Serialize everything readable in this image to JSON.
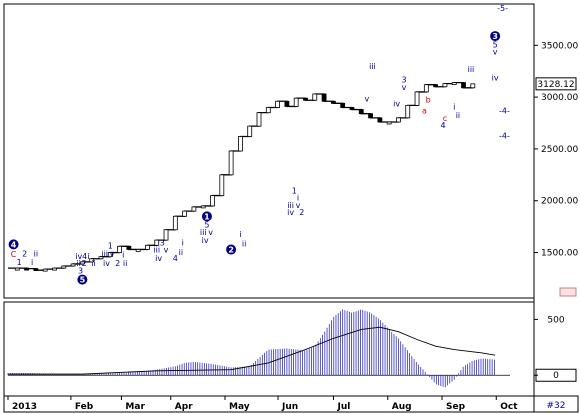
{
  "chart_data": [
    {
      "type": "line",
      "panel": "price",
      "title": "",
      "xlabel": "",
      "ylabel": "",
      "ylim": [
        1100,
        3860
      ],
      "y_ticks": [
        1500,
        2000,
        2500,
        3000,
        3500
      ],
      "y_tick_labels": [
        "1500.00",
        "2000.00",
        "2500.00",
        "3000.00",
        "3500.00"
      ],
      "last_value": 3128.12,
      "last_value_label": "3128.12",
      "grid": false,
      "months": [
        "2013",
        "Feb",
        "Mar",
        "Apr",
        "May",
        "Jun",
        "Jul",
        "Aug",
        "Sep",
        "Oct"
      ],
      "series": [
        {
          "values": [
            [
              0.0,
              1350
            ],
            [
              0.5,
              1350
            ],
            [
              1.0,
              1345
            ],
            [
              1.5,
              1330
            ],
            [
              2.0,
              1340
            ],
            [
              2.5,
              1350
            ],
            [
              3.0,
              1370
            ],
            [
              3.5,
              1390
            ],
            [
              4.0,
              1410
            ],
            [
              4.5,
              1440
            ],
            [
              5.0,
              1460
            ],
            [
              5.5,
              1500
            ],
            [
              6.0,
              1560
            ],
            [
              6.5,
              1530
            ],
            [
              7.0,
              1530
            ],
            [
              7.5,
              1570
            ],
            [
              8.0,
              1620
            ],
            [
              8.5,
              1720
            ],
            [
              9.0,
              1850
            ],
            [
              9.5,
              1900
            ],
            [
              10.0,
              1940
            ],
            [
              10.5,
              1950
            ],
            [
              11.0,
              2050
            ],
            [
              11.5,
              2250
            ],
            [
              12.0,
              2480
            ],
            [
              12.5,
              2620
            ],
            [
              13.0,
              2720
            ],
            [
              13.5,
              2850
            ],
            [
              14.0,
              2900
            ],
            [
              14.5,
              2960
            ],
            [
              15.0,
              2910
            ],
            [
              15.5,
              2990
            ],
            [
              16.0,
              2970
            ],
            [
              16.5,
              3030
            ],
            [
              17.0,
              2960
            ],
            [
              17.5,
              2940
            ],
            [
              18.0,
              2900
            ],
            [
              18.5,
              2880
            ],
            [
              19.0,
              2840
            ],
            [
              19.5,
              2800
            ],
            [
              20.0,
              2760
            ],
            [
              20.5,
              2760
            ],
            [
              21.0,
              2800
            ],
            [
              21.5,
              2920
            ],
            [
              22.0,
              3050
            ],
            [
              22.5,
              3120
            ],
            [
              23.0,
              3100
            ],
            [
              23.5,
              3130
            ],
            [
              24.0,
              3140
            ],
            [
              24.5,
              3090
            ],
            [
              25.0,
              3128.12
            ]
          ]
        }
      ],
      "wave_labels": [
        {
          "text": "4",
          "x": 0.3,
          "y": 1550,
          "color": "#ffffff",
          "circle": true
        },
        {
          "text": "C",
          "x": 0.3,
          "y": 1455,
          "color": "#cc0000"
        },
        {
          "text": "2",
          "x": 0.9,
          "y": 1460,
          "color": "#000099"
        },
        {
          "text": "ii",
          "x": 1.5,
          "y": 1460,
          "color": "#000099"
        },
        {
          "text": "1",
          "x": 0.6,
          "y": 1380,
          "color": "#000099"
        },
        {
          "text": "i",
          "x": 1.3,
          "y": 1380,
          "color": "#000099"
        },
        {
          "text": "iv4i",
          "x": 4.0,
          "y": 1440,
          "color": "#000099"
        },
        {
          "text": "ii",
          "x": 3.8,
          "y": 1370,
          "color": "#000099"
        },
        {
          "text": "2",
          "x": 4.1,
          "y": 1370,
          "color": "#000099"
        },
        {
          "text": "ii",
          "x": 4.6,
          "y": 1370,
          "color": "#000099"
        },
        {
          "text": "3",
          "x": 3.9,
          "y": 1300,
          "color": "#000099"
        },
        {
          "text": "5",
          "x": 4.0,
          "y": 1210,
          "color": "#ffffff",
          "circle": true
        },
        {
          "text": "1",
          "x": 5.5,
          "y": 1540,
          "color": "#000099"
        },
        {
          "text": "iii",
          "x": 5.2,
          "y": 1460,
          "color": "#000099"
        },
        {
          "text": "v",
          "x": 5.6,
          "y": 1460,
          "color": "#000099"
        },
        {
          "text": "iv",
          "x": 5.3,
          "y": 1370,
          "color": "#000099"
        },
        {
          "text": "2",
          "x": 5.9,
          "y": 1370,
          "color": "#000099"
        },
        {
          "text": "ii",
          "x": 6.3,
          "y": 1370,
          "color": "#000099"
        },
        {
          "text": "i",
          "x": 6.2,
          "y": 1450,
          "color": "#000099"
        },
        {
          "text": "3",
          "x": 8.3,
          "y": 1570,
          "color": "#000099"
        },
        {
          "text": "iii",
          "x": 8.0,
          "y": 1500,
          "color": "#000099"
        },
        {
          "text": "v",
          "x": 8.5,
          "y": 1500,
          "color": "#000099"
        },
        {
          "text": "iv",
          "x": 8.1,
          "y": 1420,
          "color": "#000099"
        },
        {
          "text": "4",
          "x": 9.0,
          "y": 1420,
          "color": "#000099"
        },
        {
          "text": "i",
          "x": 9.4,
          "y": 1570,
          "color": "#000099"
        },
        {
          "text": "ii",
          "x": 9.3,
          "y": 1475,
          "color": "#000099"
        },
        {
          "text": "1",
          "x": 10.7,
          "y": 1820,
          "color": "#ffffff",
          "circle": true
        },
        {
          "text": "5",
          "x": 10.7,
          "y": 1740,
          "color": "#000099"
        },
        {
          "text": "iii",
          "x": 10.5,
          "y": 1670,
          "color": "#000099"
        },
        {
          "text": "v",
          "x": 10.9,
          "y": 1670,
          "color": "#000099"
        },
        {
          "text": "iv",
          "x": 10.6,
          "y": 1590,
          "color": "#000099"
        },
        {
          "text": "2",
          "x": 12.0,
          "y": 1500,
          "color": "#ffffff",
          "circle": true
        },
        {
          "text": "i",
          "x": 12.5,
          "y": 1650,
          "color": "#000099"
        },
        {
          "text": "ii",
          "x": 12.7,
          "y": 1560,
          "color": "#000099"
        },
        {
          "text": "1",
          "x": 15.4,
          "y": 2070,
          "color": "#000099"
        },
        {
          "text": "i",
          "x": 15.6,
          "y": 2000,
          "color": "#000099"
        },
        {
          "text": "iii",
          "x": 15.2,
          "y": 1930,
          "color": "#000099"
        },
        {
          "text": "v",
          "x": 15.6,
          "y": 1930,
          "color": "#000099"
        },
        {
          "text": "iv",
          "x": 15.2,
          "y": 1860,
          "color": "#000099"
        },
        {
          "text": "2",
          "x": 15.8,
          "y": 1860,
          "color": "#000099"
        },
        {
          "text": "iii",
          "x": 19.6,
          "y": 3270,
          "color": "#000099"
        },
        {
          "text": "v",
          "x": 19.3,
          "y": 2960,
          "color": "#000099"
        },
        {
          "text": "3",
          "x": 21.3,
          "y": 3140,
          "color": "#000099"
        },
        {
          "text": "v",
          "x": 21.3,
          "y": 3070,
          "color": "#000099"
        },
        {
          "text": "iv",
          "x": 20.9,
          "y": 2910,
          "color": "#000099"
        },
        {
          "text": "b",
          "x": 22.6,
          "y": 2950,
          "color": "#cc0000"
        },
        {
          "text": "a",
          "x": 22.4,
          "y": 2840,
          "color": "#cc0000"
        },
        {
          "text": "c",
          "x": 23.5,
          "y": 2770,
          "color": "#cc0000"
        },
        {
          "text": "4",
          "x": 23.4,
          "y": 2700,
          "color": "#000099"
        },
        {
          "text": "i",
          "x": 24.0,
          "y": 2880,
          "color": "#000099"
        },
        {
          "text": "ii",
          "x": 24.2,
          "y": 2800,
          "color": "#000099"
        },
        {
          "text": "3",
          "x": 26.2,
          "y": 3560,
          "color": "#ffffff",
          "circle": true
        },
        {
          "text": "5",
          "x": 26.2,
          "y": 3480,
          "color": "#000099"
        },
        {
          "text": "v",
          "x": 26.2,
          "y": 3410,
          "color": "#000099"
        },
        {
          "text": "iii",
          "x": 24.9,
          "y": 3240,
          "color": "#000099"
        },
        {
          "text": "iv",
          "x": 26.2,
          "y": 3160,
          "color": "#000099"
        },
        {
          "text": "-5-",
          "x": 26.6,
          "y": 3830,
          "color": "#000099"
        },
        {
          "text": "-4-",
          "x": 26.7,
          "y": 2840,
          "color": "#000099"
        },
        {
          "text": "-4-",
          "x": 26.7,
          "y": 2600,
          "color": "#000099"
        }
      ]
    },
    {
      "type": "bar",
      "panel": "oscillator",
      "ylim": [
        -150,
        620
      ],
      "y_ticks": [
        0,
        500
      ],
      "y_tick_labels": [
        "0",
        "500"
      ],
      "series": [
        {
          "values": [
            [
              0.0,
              20
            ],
            [
              1.0,
              20
            ],
            [
              2.0,
              15
            ],
            [
              3.0,
              10
            ],
            [
              4.0,
              10
            ],
            [
              5.0,
              15
            ],
            [
              6.0,
              20
            ],
            [
              7.0,
              30
            ],
            [
              8.0,
              50
            ],
            [
              9.0,
              80
            ],
            [
              9.5,
              110
            ],
            [
              10.0,
              120
            ],
            [
              11.0,
              100
            ],
            [
              12.0,
              70
            ],
            [
              13.0,
              80
            ],
            [
              14.0,
              230
            ],
            [
              15.0,
              240
            ],
            [
              16.0,
              220
            ],
            [
              16.5,
              260
            ],
            [
              17.0,
              380
            ],
            [
              17.5,
              520
            ],
            [
              18.0,
              590
            ],
            [
              18.5,
              560
            ],
            [
              19.0,
              590
            ],
            [
              19.5,
              560
            ],
            [
              20.0,
              500
            ],
            [
              20.5,
              410
            ],
            [
              21.0,
              330
            ],
            [
              21.5,
              220
            ],
            [
              22.0,
              110
            ],
            [
              22.5,
              20
            ],
            [
              23.0,
              -80
            ],
            [
              23.5,
              -110
            ],
            [
              24.0,
              -40
            ],
            [
              24.5,
              80
            ],
            [
              25.0,
              130
            ],
            [
              25.5,
              150
            ],
            [
              26.2,
              140
            ]
          ]
        },
        {
          "values": [
            [
              0.0,
              10
            ],
            [
              4.0,
              10
            ],
            [
              8.0,
              40
            ],
            [
              12.0,
              50
            ],
            [
              14.0,
              110
            ],
            [
              16.0,
              230
            ],
            [
              17.5,
              330
            ],
            [
              19.0,
              410
            ],
            [
              20.0,
              430
            ],
            [
              21.0,
              390
            ],
            [
              22.0,
              320
            ],
            [
              23.0,
              260
            ],
            [
              24.0,
              230
            ],
            [
              25.5,
              200
            ],
            [
              26.2,
              180
            ]
          ]
        }
      ]
    }
  ]
}
